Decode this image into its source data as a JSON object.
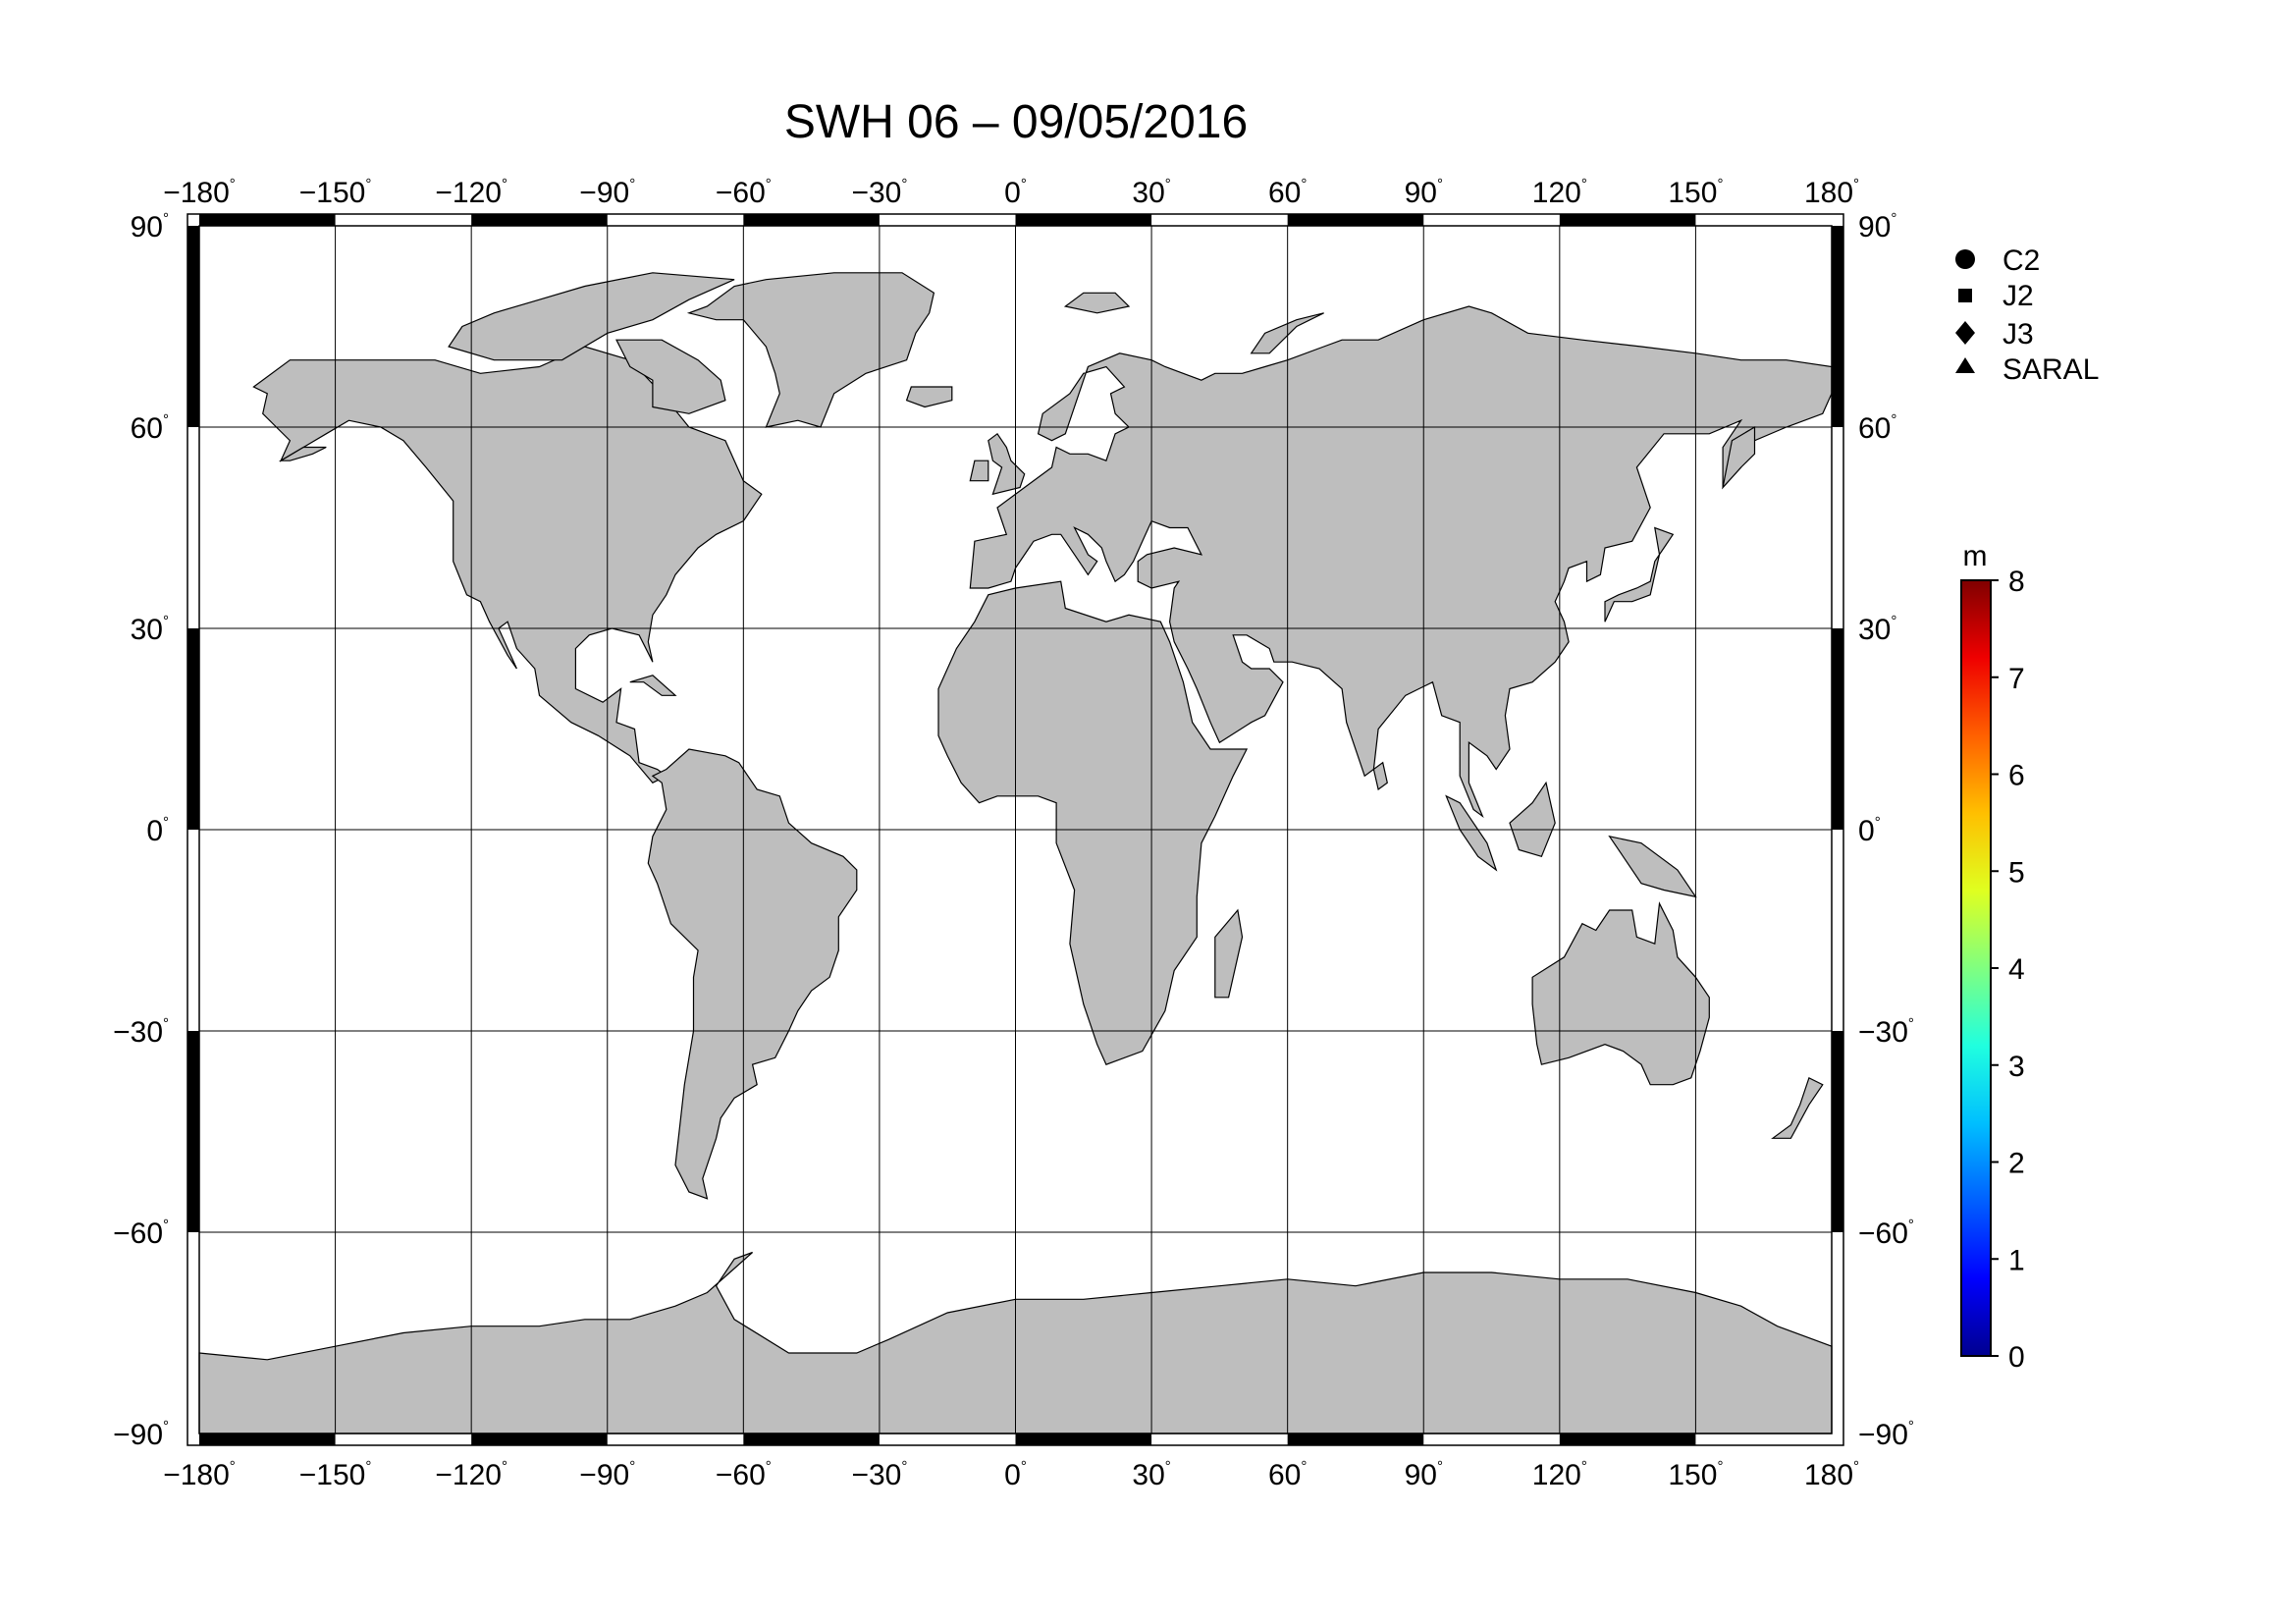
{
  "title": "SWH 06 – 09/05/2016",
  "degree_symbol": "°",
  "lon_ticks": [
    "−180",
    "−150",
    "−120",
    "−90",
    "−60",
    "−30",
    "0",
    "30",
    "60",
    "90",
    "120",
    "150",
    "180"
  ],
  "lat_ticks": [
    "90",
    "60",
    "30",
    "0",
    "−30",
    "−60",
    "−90"
  ],
  "legend": {
    "items": [
      {
        "label": "C2",
        "symbol": "circle"
      },
      {
        "label": "J2",
        "symbol": "square"
      },
      {
        "label": "J3",
        "symbol": "diamond"
      },
      {
        "label": "SARAL",
        "symbol": "triangle"
      }
    ]
  },
  "colorbar": {
    "unit": "m",
    "min": 0,
    "max": 8,
    "tick_labels": [
      "0",
      "1",
      "2",
      "3",
      "4",
      "5",
      "6",
      "7",
      "8"
    ],
    "colors": [
      "#00008f",
      "#0000ff",
      "#0060ff",
      "#00bfff",
      "#20ffdf",
      "#80ff80",
      "#dfff20",
      "#ffbf00",
      "#ff6000",
      "#ef0000",
      "#800000"
    ]
  },
  "colors": {
    "land": "#bebebe",
    "coast": "#000000",
    "grid": "#000000",
    "background": "#ffffff"
  },
  "projection": {
    "lon_range": [
      -180,
      180
    ],
    "lat_range": [
      -90,
      90
    ]
  }
}
